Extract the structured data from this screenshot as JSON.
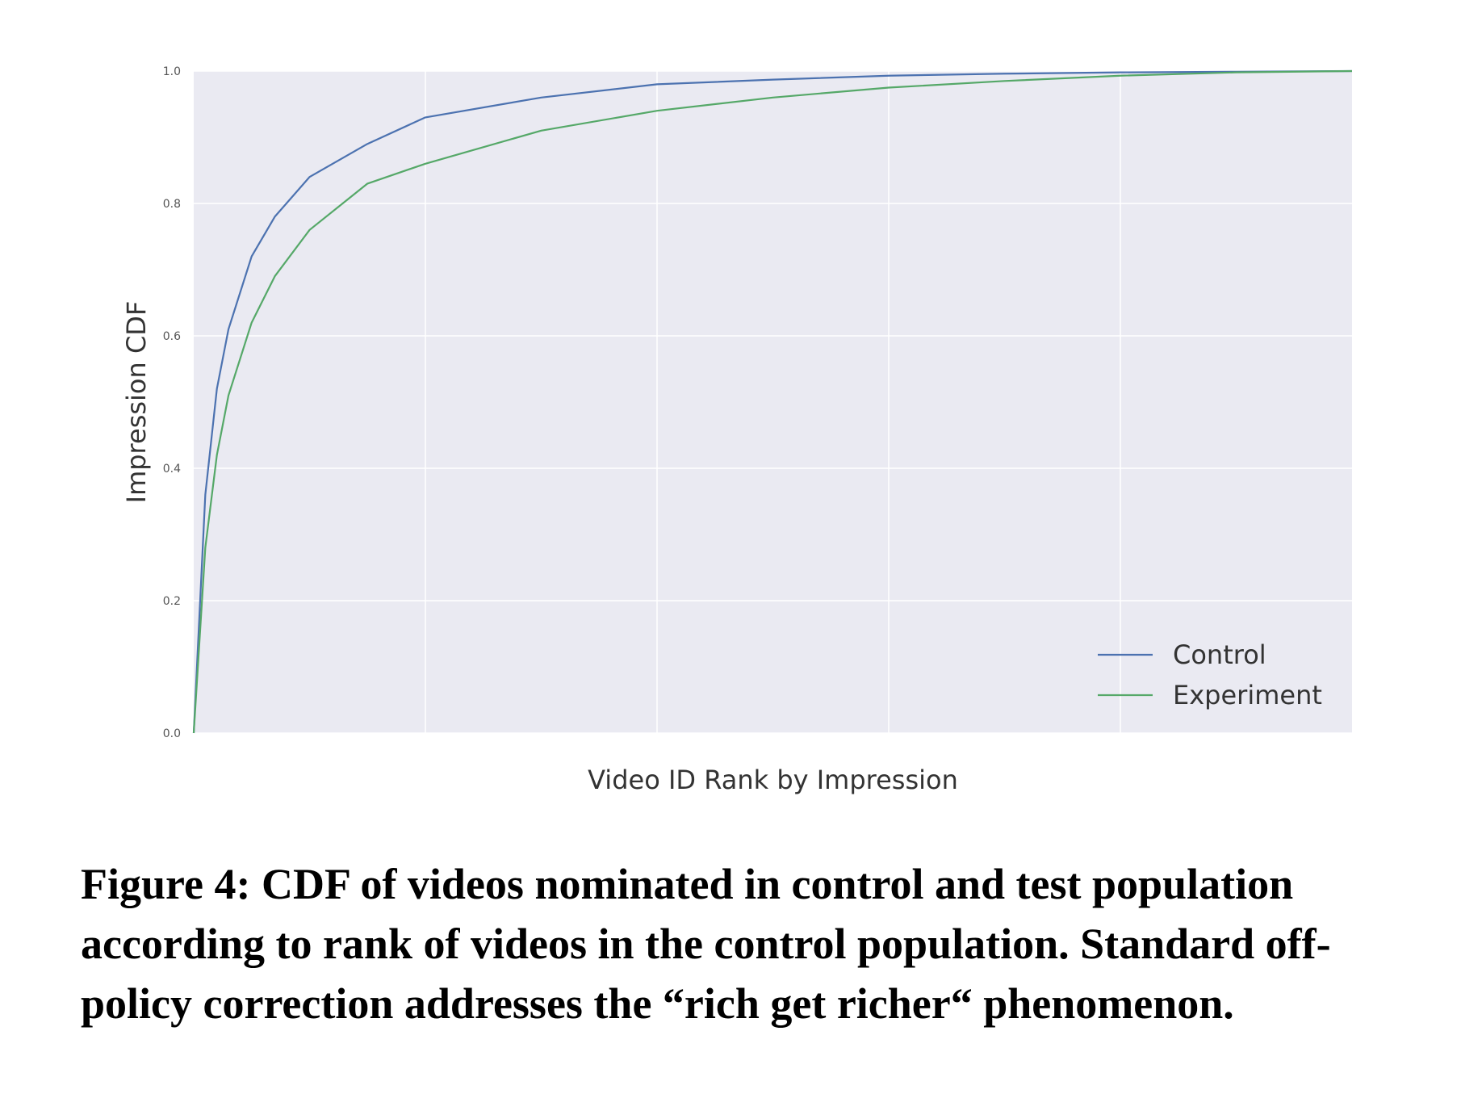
{
  "chart_data": {
    "type": "line",
    "xlabel": "Video ID Rank by Impression",
    "ylabel": "Impression CDF",
    "ylim": [
      0,
      1
    ],
    "yticks": [
      "0.0",
      "0.2",
      "0.4",
      "0.6",
      "0.8",
      "1.0"
    ],
    "xtick_labels": [],
    "xlim": [
      0,
      1
    ],
    "grid": true,
    "legend_position": "bottom-right",
    "x": [
      0,
      0.01,
      0.02,
      0.03,
      0.05,
      0.07,
      0.1,
      0.15,
      0.2,
      0.3,
      0.4,
      0.5,
      0.6,
      0.7,
      0.8,
      0.9,
      1.0
    ],
    "series": [
      {
        "name": "Control",
        "color": "#4c72b0",
        "values": [
          0,
          0.36,
          0.52,
          0.61,
          0.72,
          0.78,
          0.84,
          0.89,
          0.93,
          0.96,
          0.98,
          0.987,
          0.993,
          0.996,
          0.998,
          0.999,
          1.0
        ]
      },
      {
        "name": "Experiment",
        "color": "#55a868",
        "values": [
          0,
          0.28,
          0.42,
          0.51,
          0.62,
          0.69,
          0.76,
          0.83,
          0.86,
          0.91,
          0.94,
          0.96,
          0.975,
          0.985,
          0.993,
          0.998,
          1.0
        ]
      }
    ],
    "colors": {
      "plot_background": "#eaeaf2",
      "grid": "#ffffff"
    }
  },
  "caption": "Figure 4: CDF of videos nominated in control and test population according to rank of videos in the control population. Standard off-policy correction addresses the “rich get richer“ phenomenon."
}
